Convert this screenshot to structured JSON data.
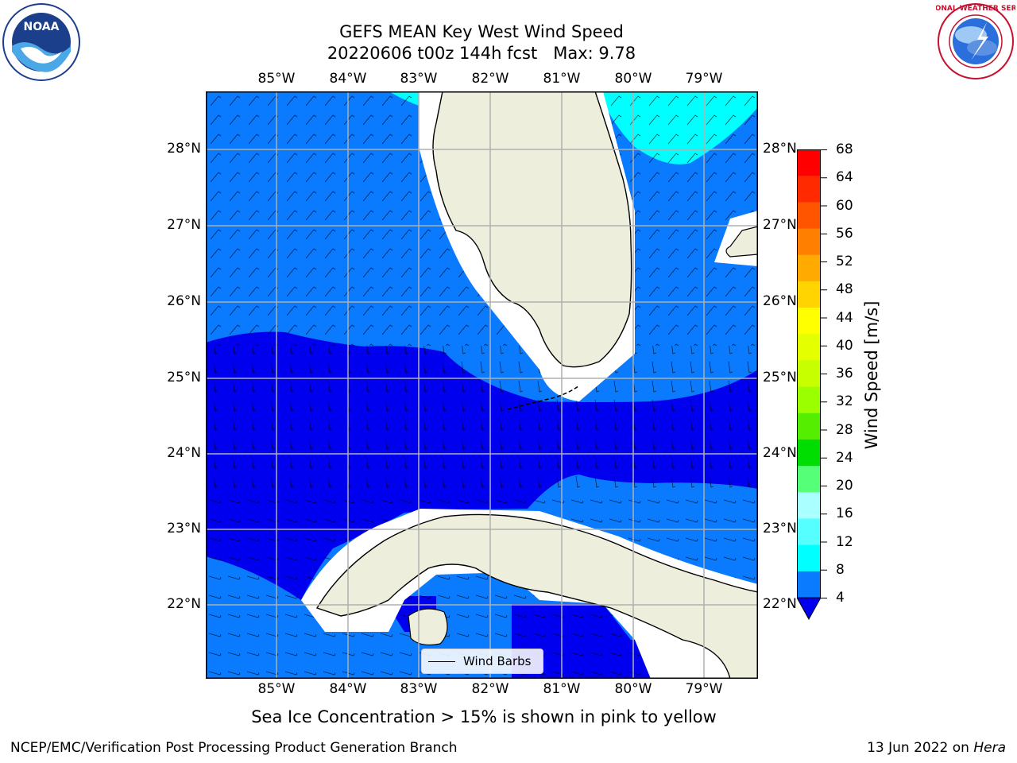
{
  "title": {
    "line1": "GEFS MEAN Key West Wind Speed",
    "line2": "20220606 t00z 144h fcst   Max: 9.78"
  },
  "logos": {
    "left": {
      "name": "noaa-logo",
      "text": "NOAA"
    },
    "right": {
      "name": "nws-logo",
      "text": "NATIONAL WEATHER SERVICE"
    }
  },
  "map": {
    "lon_labels": [
      "85°W",
      "84°W",
      "83°W",
      "82°W",
      "81°W",
      "80°W",
      "79°W"
    ],
    "lat_labels": [
      "28°N",
      "27°N",
      "26°N",
      "25°N",
      "24°N",
      "23°N",
      "22°N"
    ],
    "legend_label": "Wind Barbs",
    "colors": {
      "land": "#eeeedd",
      "band_4_8": "#0a7bff",
      "band_0_4": "#0000ee",
      "band_8_12": "#00ffff",
      "grid": "#b0b0b0"
    }
  },
  "colorbar": {
    "label": "Wind Speed [m/s]",
    "ticks": [
      "68",
      "64",
      "60",
      "56",
      "52",
      "48",
      "44",
      "40",
      "36",
      "32",
      "28",
      "24",
      "20",
      "16",
      "12",
      "8",
      "4"
    ],
    "colors": [
      "#ff0000",
      "#ff2a00",
      "#ff5500",
      "#ff8000",
      "#ffaa00",
      "#ffd400",
      "#ffff00",
      "#e4ff00",
      "#c8ff00",
      "#9cff00",
      "#55ee00",
      "#00dd00",
      "#55ff77",
      "#aaffff",
      "#55ffff",
      "#00ffff",
      "#0a7bff"
    ],
    "extend_color": "#0000ee"
  },
  "footer": {
    "note": "Sea Ice Concentration > 15% is shown in pink to yellow",
    "credit": "NCEP/EMC/Verification Post Processing Product Generation Branch",
    "date": "13 Jun 2022 on",
    "machine": "Hera"
  }
}
